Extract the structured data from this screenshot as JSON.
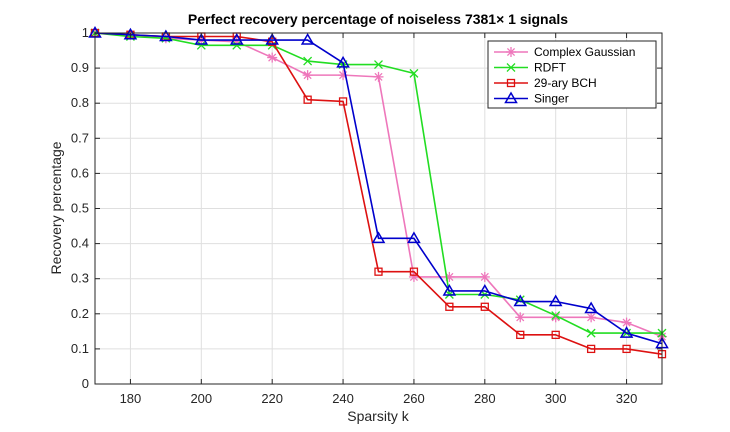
{
  "chart_data": {
    "type": "line",
    "title": "Perfect recovery percentage of noiseless 7381× 1 signals",
    "xlabel": "Sparsity k",
    "ylabel": "Recovery percentage",
    "xlim": [
      170,
      330
    ],
    "ylim": [
      0,
      1
    ],
    "x_ticks": [
      "180",
      "200",
      "220",
      "240",
      "260",
      "280",
      "300",
      "320"
    ],
    "y_ticks": [
      "0",
      "0.1",
      "0.2",
      "0.3",
      "0.4",
      "0.5",
      "0.6",
      "0.7",
      "0.8",
      "0.9",
      "1"
    ],
    "x_tick_values": [
      180,
      200,
      220,
      240,
      260,
      280,
      300,
      320
    ],
    "y_tick_values": [
      0,
      0.1,
      0.2,
      0.3,
      0.4,
      0.5,
      0.6,
      0.7,
      0.8,
      0.9,
      1
    ],
    "grid": true,
    "legend_position": "top-right",
    "x": [
      170,
      180,
      190,
      200,
      210,
      220,
      230,
      240,
      250,
      260,
      270,
      280,
      290,
      300,
      310,
      320,
      330
    ],
    "series": [
      {
        "name": "Complex Gaussian",
        "color": "#ee77bb",
        "marker": "asterisk",
        "values": [
          1.0,
          0.995,
          0.985,
          0.98,
          0.975,
          0.93,
          0.88,
          0.88,
          0.875,
          0.305,
          0.305,
          0.305,
          0.19,
          0.19,
          0.19,
          0.175,
          0.135
        ]
      },
      {
        "name": "RDFT",
        "color": "#22dd22",
        "marker": "x",
        "values": [
          1.0,
          0.99,
          0.985,
          0.965,
          0.965,
          0.965,
          0.92,
          0.91,
          0.91,
          0.885,
          0.255,
          0.255,
          0.24,
          0.195,
          0.145,
          0.145,
          0.145
        ]
      },
      {
        "name": "29-ary BCH",
        "color": "#dd1111",
        "marker": "square",
        "values": [
          1.0,
          0.995,
          0.99,
          0.99,
          0.99,
          0.975,
          0.81,
          0.805,
          0.32,
          0.32,
          0.22,
          0.22,
          0.14,
          0.14,
          0.1,
          0.1,
          0.085
        ]
      },
      {
        "name": "Singer",
        "color": "#0000cc",
        "marker": "triangle",
        "values": [
          1.0,
          0.995,
          0.99,
          0.98,
          0.98,
          0.98,
          0.98,
          0.915,
          0.415,
          0.415,
          0.265,
          0.265,
          0.235,
          0.235,
          0.215,
          0.145,
          0.115
        ]
      }
    ]
  }
}
